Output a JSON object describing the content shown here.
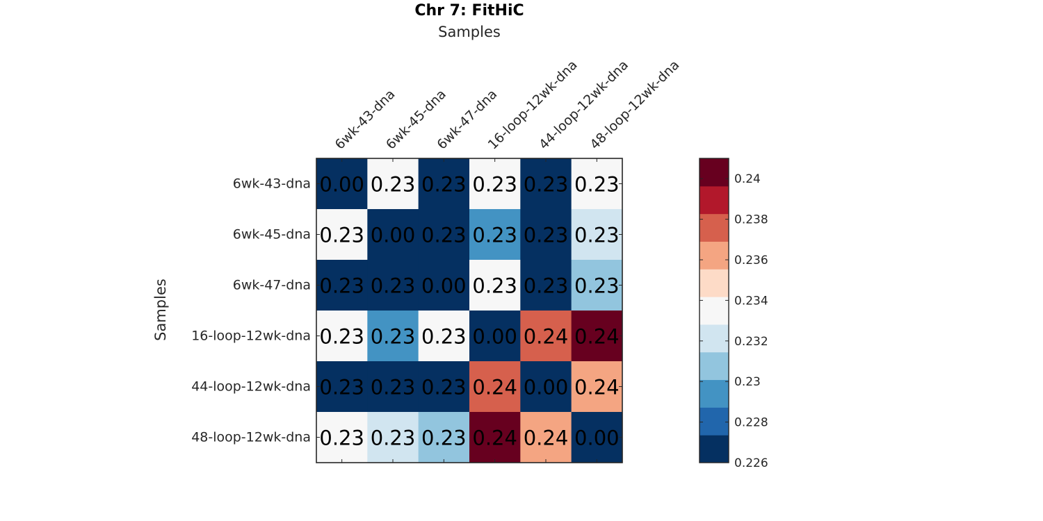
{
  "chart_data": {
    "type": "heatmap",
    "title": "Chr 7: FitHiC",
    "xlabel": "Samples",
    "ylabel": "Samples",
    "x_categories": [
      "6wk-43-dna",
      "6wk-45-dna",
      "6wk-47-dna",
      "16-loop-12wk-dna",
      "44-loop-12wk-dna",
      "48-loop-12wk-dna"
    ],
    "y_categories": [
      "6wk-43-dna",
      "6wk-45-dna",
      "6wk-47-dna",
      "16-loop-12wk-dna",
      "44-loop-12wk-dna",
      "48-loop-12wk-dna"
    ],
    "values": [
      [
        0.0,
        0.233,
        0.2255,
        0.233,
        0.2255,
        0.233
      ],
      [
        0.233,
        0.0,
        0.2255,
        0.2295,
        0.2255,
        0.2315
      ],
      [
        0.2255,
        0.2255,
        0.0,
        0.233,
        0.2255,
        0.2305
      ],
      [
        0.233,
        0.2295,
        0.233,
        0.0,
        0.2375,
        0.2405
      ],
      [
        0.2255,
        0.2255,
        0.2255,
        0.2375,
        0.0,
        0.2365
      ],
      [
        0.233,
        0.2315,
        0.2305,
        0.2405,
        0.2365,
        0.0
      ]
    ],
    "cell_labels": [
      [
        "0.00",
        "0.23",
        "0.23",
        "0.23",
        "0.23",
        "0.23"
      ],
      [
        "0.23",
        "0.00",
        "0.23",
        "0.23",
        "0.23",
        "0.23"
      ],
      [
        "0.23",
        "0.23",
        "0.00",
        "0.23",
        "0.23",
        "0.23"
      ],
      [
        "0.23",
        "0.23",
        "0.23",
        "0.00",
        "0.24",
        "0.24"
      ],
      [
        "0.23",
        "0.23",
        "0.23",
        "0.24",
        "0.00",
        "0.24"
      ],
      [
        "0.23",
        "0.23",
        "0.23",
        "0.24",
        "0.24",
        "0.00"
      ]
    ],
    "colorbar": {
      "range": [
        0.226,
        0.241
      ],
      "ticks": [
        0.226,
        0.228,
        0.23,
        0.232,
        0.234,
        0.236,
        0.238,
        0.24
      ],
      "tick_labels": [
        "0.226",
        "0.228",
        "0.23",
        "0.232",
        "0.234",
        "0.236",
        "0.238",
        "0.24"
      ],
      "colors": [
        "#053061",
        "#2166ac",
        "#4393c3",
        "#92c5de",
        "#d1e5f0",
        "#f7f7f7",
        "#fddbc7",
        "#f4a582",
        "#d6604d",
        "#b2182b",
        "#67001f"
      ]
    },
    "x_axis_position": "top",
    "grid": false,
    "legend": "colorbar-right"
  }
}
